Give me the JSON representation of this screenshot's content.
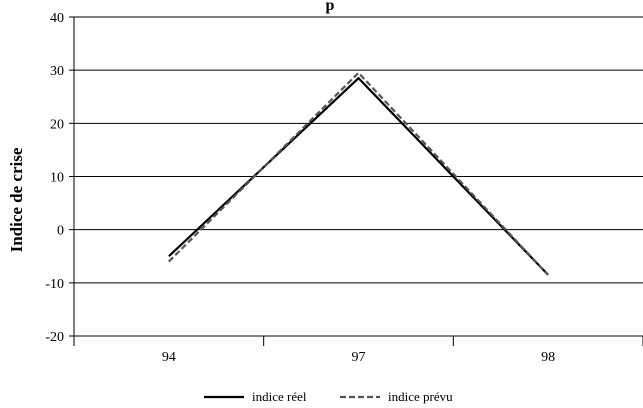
{
  "chart_data": {
    "type": "line",
    "title": "p",
    "xlabel": "",
    "ylabel": "Indice de crise",
    "categories": [
      "94",
      "97",
      "98"
    ],
    "series": [
      {
        "name": "indice réel",
        "values": [
          -5,
          28.5,
          -8.5
        ],
        "style": "solid",
        "color": "#000000"
      },
      {
        "name": "indice prévu",
        "values": [
          -6,
          29.5,
          -8.5
        ],
        "style": "dashed",
        "color": "#555555"
      }
    ],
    "ylim": [
      -20,
      40
    ],
    "yticks": [
      "40",
      "30",
      "20",
      "10",
      "0",
      "-10",
      "-20"
    ],
    "grid": true,
    "legend": "bottom"
  }
}
